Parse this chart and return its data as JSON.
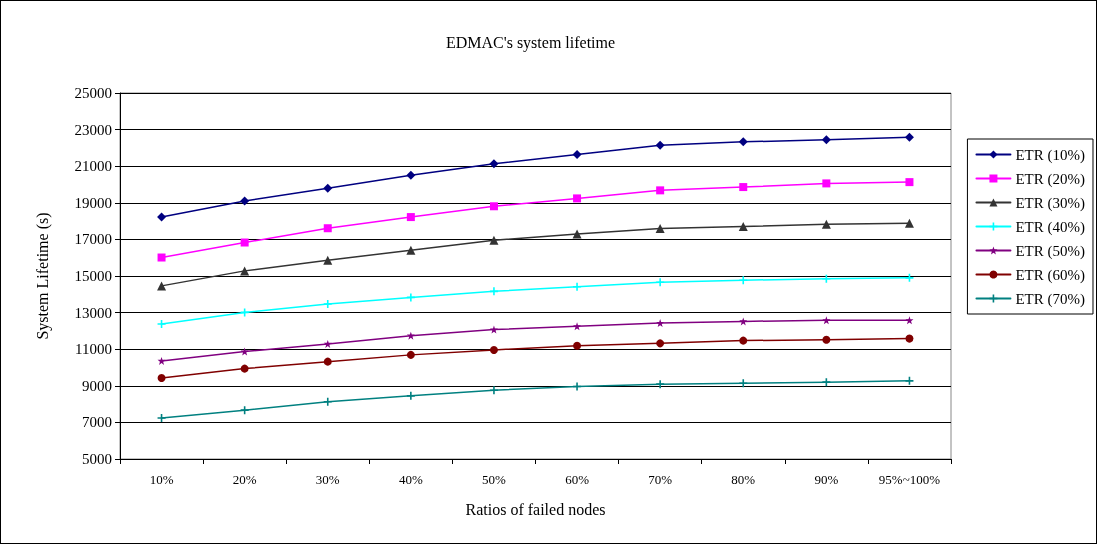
{
  "chart_data": {
    "type": "line",
    "title": "EDMAC's system lifetime",
    "xlabel": "Ratios of failed nodes",
    "ylabel": "System Lifetime (s)",
    "categories": [
      "10%",
      "20%",
      "30%",
      "40%",
      "50%",
      "60%",
      "70%",
      "80%",
      "90%",
      "95%~100%"
    ],
    "series": [
      {
        "name": "ETR (10%)",
        "color": "#000080",
        "marker": "diamond",
        "values": [
          18220,
          19100,
          19790,
          20500,
          21130,
          21640,
          22150,
          22330,
          22440,
          22580
        ]
      },
      {
        "name": "ETR (20%)",
        "color": "#ff00ff",
        "marker": "square",
        "values": [
          16010,
          16830,
          17610,
          18220,
          18810,
          19240,
          19680,
          19860,
          20060,
          20130
        ]
      },
      {
        "name": "ETR (30%)",
        "color": "#333333",
        "marker": "triangle",
        "values": [
          14460,
          15280,
          15860,
          16410,
          16950,
          17300,
          17590,
          17700,
          17830,
          17880
        ]
      },
      {
        "name": "ETR (40%)",
        "color": "#00ffff",
        "marker": "cross",
        "values": [
          12380,
          13010,
          13470,
          13830,
          14160,
          14410,
          14660,
          14770,
          14850,
          14900
        ]
      },
      {
        "name": "ETR (50%)",
        "color": "#800080",
        "marker": "star",
        "values": [
          10360,
          10870,
          11290,
          11740,
          12070,
          12250,
          12430,
          12520,
          12580,
          12580
        ]
      },
      {
        "name": "ETR (60%)",
        "color": "#800000",
        "marker": "circle",
        "values": [
          9430,
          9940,
          10320,
          10690,
          10960,
          11190,
          11320,
          11470,
          11520,
          11580
        ]
      },
      {
        "name": "ETR (70%)",
        "color": "#008080",
        "marker": "cross",
        "values": [
          7240,
          7670,
          8130,
          8450,
          8760,
          8960,
          9090,
          9140,
          9200,
          9270
        ]
      }
    ],
    "ylim": [
      5000,
      25000
    ],
    "yticks": [
      5000,
      7000,
      9000,
      11000,
      13000,
      15000,
      17000,
      19000,
      21000,
      23000,
      25000
    ],
    "grid": "y",
    "legend": "right",
    "line_style": "solid"
  }
}
